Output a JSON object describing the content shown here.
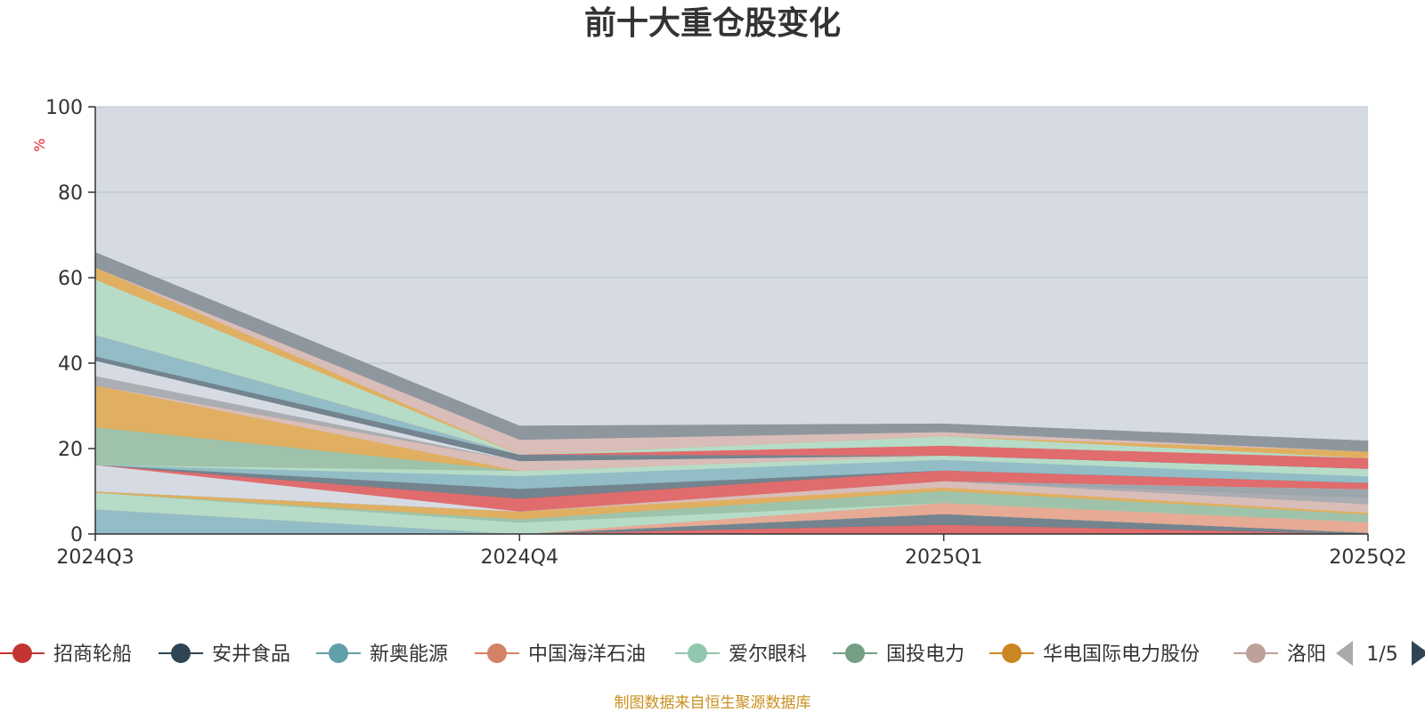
{
  "chart_data": {
    "type": "area",
    "stacked": true,
    "title": "前十大重仓股变化",
    "ylabel": "%",
    "ylim": [
      0,
      100
    ],
    "yticks": [
      0,
      20,
      40,
      60,
      80,
      100
    ],
    "categories": [
      "2024Q3",
      "2024Q4",
      "2025Q1",
      "2025Q2"
    ],
    "grid": true,
    "legend_position": "bottom",
    "legend_page": "1/5",
    "source": "制图数据来自恒生聚源数据库",
    "legend": [
      {
        "name": "招商轮船",
        "color": "#c23531"
      },
      {
        "name": "安井食品",
        "color": "#2f4554"
      },
      {
        "name": "新奥能源",
        "color": "#61a0a8"
      },
      {
        "name": "中国海洋石油",
        "color": "#d48265"
      },
      {
        "name": "爱尔眼科",
        "color": "#91c7ae"
      },
      {
        "name": "国投电力",
        "color": "#749f83"
      },
      {
        "name": "华电国际电力股份",
        "color": "#ca8622"
      },
      {
        "name": "洛阳",
        "color": "#bda29a"
      }
    ],
    "series": [
      {
        "values": [
          0,
          0,
          2.2,
          0
        ],
        "color": "#e06666"
      },
      {
        "values": [
          0,
          0,
          2.5,
          0.3
        ],
        "color": "#6e7f8a"
      },
      {
        "values": [
          5.8,
          0,
          0,
          0
        ],
        "color": "#8fbcc4"
      },
      {
        "values": [
          0,
          0,
          2.6,
          2.5
        ],
        "color": "#e8a890"
      },
      {
        "values": [
          3.9,
          2.7,
          0,
          0
        ],
        "color": "#b4dcc6"
      },
      {
        "values": [
          0,
          0.8,
          2.8,
          1.8
        ],
        "color": "#9cc2a6"
      },
      {
        "values": [
          0.3,
          1.8,
          0.8,
          0.4
        ],
        "color": "#e0ad5a"
      },
      {
        "values": [
          0,
          0,
          1.5,
          2.0
        ],
        "color": "#d9bcb6"
      },
      {
        "values": [
          0,
          0,
          0,
          1.5
        ],
        "color": "#a8abae"
      },
      {
        "values": [
          0,
          0,
          0,
          2.0
        ],
        "color": "#99a3aa"
      },
      {
        "values": [
          6.2,
          0,
          0,
          0
        ],
        "color": "#d6dbe3"
      },
      {
        "values": [
          0,
          3.0,
          2.5,
          1.5
        ],
        "color": "#e06666"
      },
      {
        "values": [
          0,
          2.3,
          0,
          0
        ],
        "color": "#6e7f8a"
      },
      {
        "values": [
          0,
          3.0,
          2.5,
          1.5
        ],
        "color": "#8fbcc4"
      },
      {
        "values": [
          0,
          1.2,
          1.0,
          1.8
        ],
        "color": "#b4dcc6"
      },
      {
        "values": [
          8.8,
          0,
          0,
          0
        ],
        "color": "#9cc2a6"
      },
      {
        "values": [
          9.8,
          0,
          0,
          0
        ],
        "color": "#e0ad5a"
      },
      {
        "values": [
          0,
          2.3,
          0,
          0
        ],
        "color": "#d9bcb6"
      },
      {
        "values": [
          2.2,
          0,
          0,
          0
        ],
        "color": "#a8abae"
      },
      {
        "values": [
          3.6,
          0,
          0,
          0
        ],
        "color": "#d6dbe3"
      },
      {
        "values": [
          1.0,
          1.5,
          0,
          0
        ],
        "color": "#6e7f8a"
      },
      {
        "values": [
          5.0,
          0,
          0,
          0
        ],
        "color": "#8fbcc4"
      },
      {
        "values": [
          0,
          0,
          2.3,
          2.5
        ],
        "color": "#e06666"
      },
      {
        "values": [
          13.0,
          0,
          2.2,
          0
        ],
        "color": "#b4dcc6"
      },
      {
        "values": [
          2.8,
          0,
          0,
          1.5
        ],
        "color": "#e0ad5a"
      },
      {
        "values": [
          0,
          3.5,
          1.0,
          0
        ],
        "color": "#d9bcb6"
      },
      {
        "values": [
          3.5,
          3.2,
          1.9,
          2.5
        ],
        "color": "#8a9499"
      }
    ]
  }
}
